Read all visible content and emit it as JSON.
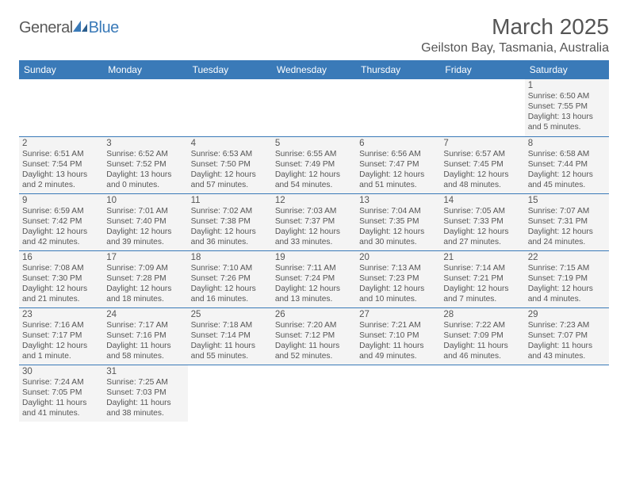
{
  "logo": {
    "general": "General",
    "blue": "Blue"
  },
  "title": "March 2025",
  "location": "Geilston Bay, Tasmania, Australia",
  "colors": {
    "header_bg": "#3a7ab8",
    "header_fg": "#ffffff",
    "cell_bg": "#f4f4f4",
    "border": "#3a7ab8",
    "text": "#555555"
  },
  "weekdays": [
    "Sunday",
    "Monday",
    "Tuesday",
    "Wednesday",
    "Thursday",
    "Friday",
    "Saturday"
  ],
  "weeks": [
    [
      null,
      null,
      null,
      null,
      null,
      null,
      {
        "d": "1",
        "sr": "6:50 AM",
        "ss": "7:55 PM",
        "dl": "13 hours and 5 minutes."
      }
    ],
    [
      {
        "d": "2",
        "sr": "6:51 AM",
        "ss": "7:54 PM",
        "dl": "13 hours and 2 minutes."
      },
      {
        "d": "3",
        "sr": "6:52 AM",
        "ss": "7:52 PM",
        "dl": "13 hours and 0 minutes."
      },
      {
        "d": "4",
        "sr": "6:53 AM",
        "ss": "7:50 PM",
        "dl": "12 hours and 57 minutes."
      },
      {
        "d": "5",
        "sr": "6:55 AM",
        "ss": "7:49 PM",
        "dl": "12 hours and 54 minutes."
      },
      {
        "d": "6",
        "sr": "6:56 AM",
        "ss": "7:47 PM",
        "dl": "12 hours and 51 minutes."
      },
      {
        "d": "7",
        "sr": "6:57 AM",
        "ss": "7:45 PM",
        "dl": "12 hours and 48 minutes."
      },
      {
        "d": "8",
        "sr": "6:58 AM",
        "ss": "7:44 PM",
        "dl": "12 hours and 45 minutes."
      }
    ],
    [
      {
        "d": "9",
        "sr": "6:59 AM",
        "ss": "7:42 PM",
        "dl": "12 hours and 42 minutes."
      },
      {
        "d": "10",
        "sr": "7:01 AM",
        "ss": "7:40 PM",
        "dl": "12 hours and 39 minutes."
      },
      {
        "d": "11",
        "sr": "7:02 AM",
        "ss": "7:38 PM",
        "dl": "12 hours and 36 minutes."
      },
      {
        "d": "12",
        "sr": "7:03 AM",
        "ss": "7:37 PM",
        "dl": "12 hours and 33 minutes."
      },
      {
        "d": "13",
        "sr": "7:04 AM",
        "ss": "7:35 PM",
        "dl": "12 hours and 30 minutes."
      },
      {
        "d": "14",
        "sr": "7:05 AM",
        "ss": "7:33 PM",
        "dl": "12 hours and 27 minutes."
      },
      {
        "d": "15",
        "sr": "7:07 AM",
        "ss": "7:31 PM",
        "dl": "12 hours and 24 minutes."
      }
    ],
    [
      {
        "d": "16",
        "sr": "7:08 AM",
        "ss": "7:30 PM",
        "dl": "12 hours and 21 minutes."
      },
      {
        "d": "17",
        "sr": "7:09 AM",
        "ss": "7:28 PM",
        "dl": "12 hours and 18 minutes."
      },
      {
        "d": "18",
        "sr": "7:10 AM",
        "ss": "7:26 PM",
        "dl": "12 hours and 16 minutes."
      },
      {
        "d": "19",
        "sr": "7:11 AM",
        "ss": "7:24 PM",
        "dl": "12 hours and 13 minutes."
      },
      {
        "d": "20",
        "sr": "7:13 AM",
        "ss": "7:23 PM",
        "dl": "12 hours and 10 minutes."
      },
      {
        "d": "21",
        "sr": "7:14 AM",
        "ss": "7:21 PM",
        "dl": "12 hours and 7 minutes."
      },
      {
        "d": "22",
        "sr": "7:15 AM",
        "ss": "7:19 PM",
        "dl": "12 hours and 4 minutes."
      }
    ],
    [
      {
        "d": "23",
        "sr": "7:16 AM",
        "ss": "7:17 PM",
        "dl": "12 hours and 1 minute."
      },
      {
        "d": "24",
        "sr": "7:17 AM",
        "ss": "7:16 PM",
        "dl": "11 hours and 58 minutes."
      },
      {
        "d": "25",
        "sr": "7:18 AM",
        "ss": "7:14 PM",
        "dl": "11 hours and 55 minutes."
      },
      {
        "d": "26",
        "sr": "7:20 AM",
        "ss": "7:12 PM",
        "dl": "11 hours and 52 minutes."
      },
      {
        "d": "27",
        "sr": "7:21 AM",
        "ss": "7:10 PM",
        "dl": "11 hours and 49 minutes."
      },
      {
        "d": "28",
        "sr": "7:22 AM",
        "ss": "7:09 PM",
        "dl": "11 hours and 46 minutes."
      },
      {
        "d": "29",
        "sr": "7:23 AM",
        "ss": "7:07 PM",
        "dl": "11 hours and 43 minutes."
      }
    ],
    [
      {
        "d": "30",
        "sr": "7:24 AM",
        "ss": "7:05 PM",
        "dl": "11 hours and 41 minutes."
      },
      {
        "d": "31",
        "sr": "7:25 AM",
        "ss": "7:03 PM",
        "dl": "11 hours and 38 minutes."
      },
      null,
      null,
      null,
      null,
      null
    ]
  ],
  "labels": {
    "sunrise": "Sunrise: ",
    "sunset": "Sunset: ",
    "daylight": "Daylight: "
  }
}
